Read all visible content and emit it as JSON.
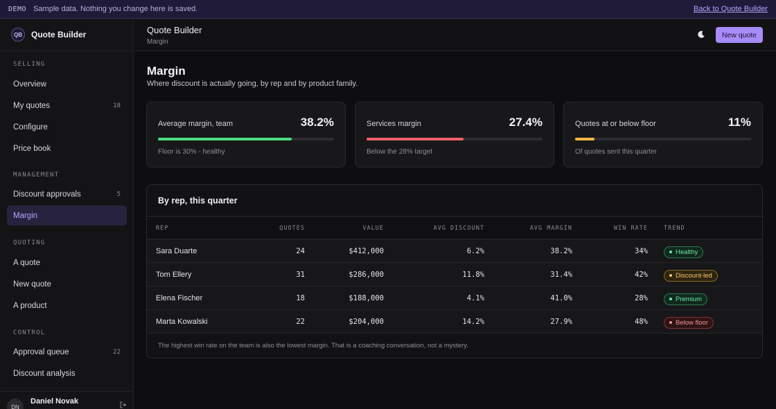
{
  "banner": {
    "tag": "DEMO",
    "message": "Sample data. Nothing you change here is saved.",
    "back_link": "Back to Quote Builder"
  },
  "brand": {
    "logo": "QB",
    "name": "Quote Builder"
  },
  "sidebar": {
    "sections": [
      {
        "label": "SELLING",
        "items": [
          {
            "label": "Overview",
            "count": ""
          },
          {
            "label": "My quotes",
            "count": "18"
          },
          {
            "label": "Configure",
            "count": ""
          },
          {
            "label": "Price book",
            "count": ""
          }
        ]
      },
      {
        "label": "MANAGEMENT",
        "items": [
          {
            "label": "Discount approvals",
            "count": "5"
          },
          {
            "label": "Margin",
            "count": "",
            "active": true
          }
        ]
      },
      {
        "label": "QUOTING",
        "items": [
          {
            "label": "A quote",
            "count": ""
          },
          {
            "label": "New quote",
            "count": ""
          },
          {
            "label": "A product",
            "count": ""
          }
        ]
      },
      {
        "label": "CONTROL",
        "items": [
          {
            "label": "Approval queue",
            "count": "22"
          },
          {
            "label": "Discount analysis",
            "count": ""
          }
        ]
      }
    ]
  },
  "user": {
    "initials": "DN",
    "name": "Daniel Novak",
    "icon": "sign-out-icon"
  },
  "topbar": {
    "title": "Quote Builder",
    "subtitle": "Margin",
    "theme_icon": "moon-icon",
    "new_quote": "New quote"
  },
  "page": {
    "title": "Margin",
    "subtitle": "Where discount is actually going, by rep and by product family."
  },
  "cards": [
    {
      "label": "Average margin, team",
      "value": "38.2%",
      "progress": 0.76,
      "color": "#4ade80",
      "note": "Floor is 30% - healthy"
    },
    {
      "label": "Services margin",
      "value": "27.4%",
      "progress": 0.55,
      "color": "#f0606a",
      "note": "Below the 28% target"
    },
    {
      "label": "Quotes at or below floor",
      "value": "11%",
      "progress": 0.11,
      "color": "#f5b942",
      "note": "Of quotes sent this quarter"
    }
  ],
  "table": {
    "title": "By rep, this quarter",
    "headers": {
      "rep": "REP",
      "quotes": "QUOTES",
      "value": "VALUE",
      "avg_discount": "AVG DISCOUNT",
      "avg_margin": "AVG MARGIN",
      "win_rate": "WIN RATE",
      "trend": "TREND"
    },
    "rows": [
      {
        "rep": "Sara Duarte",
        "quotes": "24",
        "value": "$412,000",
        "avg_discount": "6.2%",
        "avg_margin": "38.2%",
        "win_rate": "34%",
        "trend": "Healthy",
        "trend_status": "good"
      },
      {
        "rep": "Tom Ellery",
        "quotes": "31",
        "value": "$286,000",
        "avg_discount": "11.8%",
        "avg_margin": "31.4%",
        "win_rate": "42%",
        "trend": "Discount-led",
        "trend_status": "warn"
      },
      {
        "rep": "Elena Fischer",
        "quotes": "18",
        "value": "$188,000",
        "avg_discount": "4.1%",
        "avg_margin": "41.0%",
        "win_rate": "28%",
        "trend": "Premium",
        "trend_status": "good"
      },
      {
        "rep": "Marta Kowalski",
        "quotes": "22",
        "value": "$204,000",
        "avg_discount": "14.2%",
        "avg_margin": "27.9%",
        "win_rate": "48%",
        "trend": "Below floor",
        "trend_status": "bad"
      }
    ],
    "footnote": "The highest win rate on the team is also the lowest margin. That is a coaching conversation, not a mystery."
  }
}
